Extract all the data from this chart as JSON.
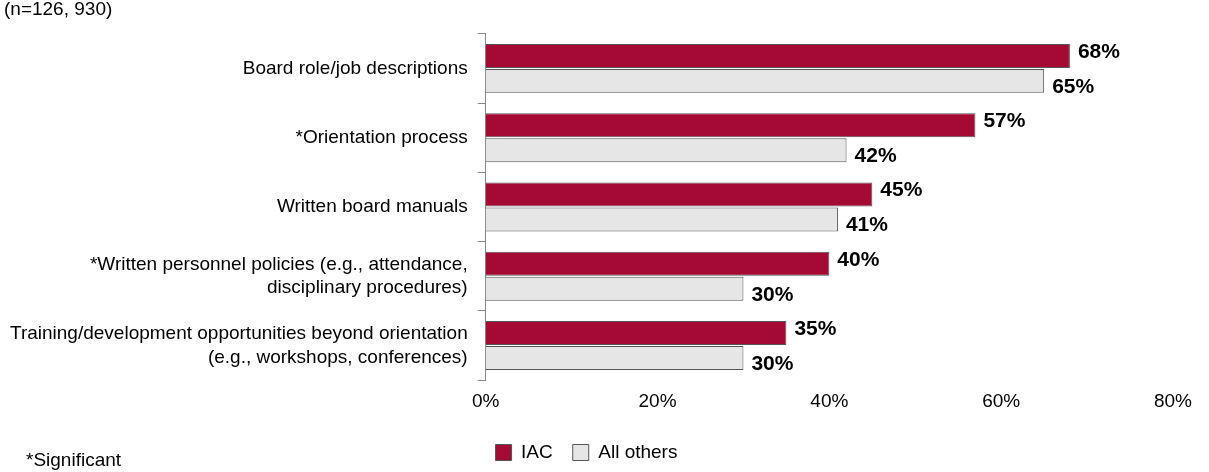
{
  "chart_data": {
    "type": "bar",
    "orientation": "horizontal",
    "categories": [
      "Board role/job descriptions",
      "*Orientation process",
      "Written board manuals",
      "*Written personnel policies (e.g., attendance, disciplinary procedures)",
      "Training/development opportunities beyond orientation (e.g., workshops, conferences)"
    ],
    "series": [
      {
        "name": "IAC",
        "color": "#a50a34",
        "values": [
          68,
          57,
          45,
          40,
          35
        ],
        "value_labels": [
          "68%",
          "57%",
          "45%",
          "40%",
          "35%"
        ]
      },
      {
        "name": "All others",
        "color": "#e6e6e6",
        "values": [
          65,
          42,
          41,
          30,
          30
        ],
        "value_labels": [
          "65%",
          "42%",
          "41%",
          "30%",
          "30%"
        ]
      }
    ],
    "xlim": [
      0,
      80
    ],
    "xticks": [
      {
        "value": 0,
        "label": "0%"
      },
      {
        "value": 20,
        "label": "20%"
      },
      {
        "value": 40,
        "label": "40%"
      },
      {
        "value": 60,
        "label": "60%"
      },
      {
        "value": 80,
        "label": "80%"
      }
    ],
    "grid": false,
    "legend": "bottom",
    "annotations": [
      "(n=126, 930)",
      "*Significant"
    ]
  }
}
